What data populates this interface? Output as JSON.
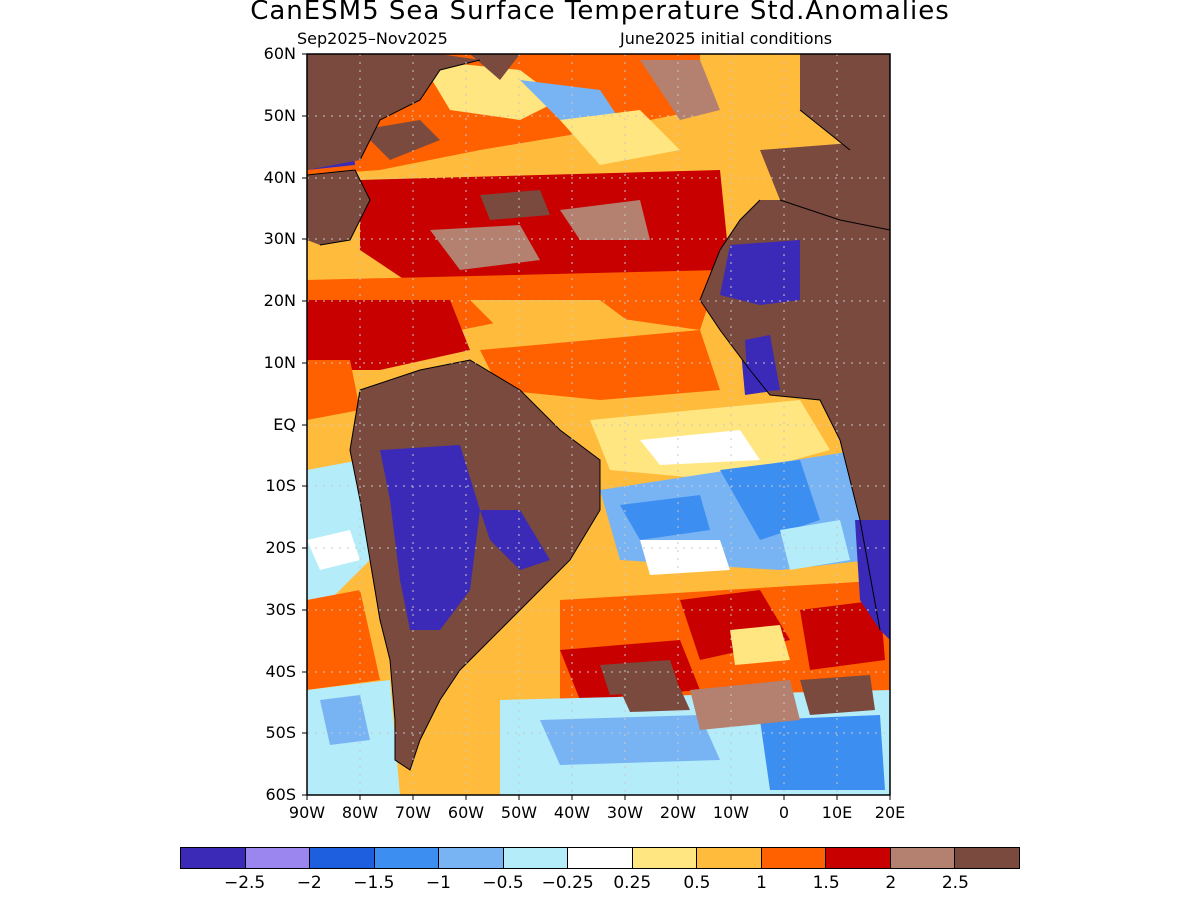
{
  "title": "CanESM5 Sea Surface Temperature Std.Anomalies",
  "period": "Sep2025–Nov2025",
  "init_conditions": "June2025 initial conditions",
  "lat_labels": [
    "60N",
    "50N",
    "40N",
    "30N",
    "20N",
    "10N",
    "EQ",
    "10S",
    "20S",
    "30S",
    "40S",
    "50S",
    "60S"
  ],
  "lon_labels": [
    "90W",
    "80W",
    "70W",
    "60W",
    "50W",
    "40W",
    "30W",
    "20W",
    "10W",
    "0",
    "10E",
    "20E"
  ],
  "legend": {
    "colors": [
      "#3b29b8",
      "#9b86f0",
      "#1e5fe0",
      "#3c8ef0",
      "#78b4f4",
      "#b4ecfa",
      "#ffffff",
      "#ffe680",
      "#ffbb3c",
      "#ff6000",
      "#c80000",
      "#b48070",
      "#7a4a3e"
    ],
    "labels": [
      "−2.5",
      "−2",
      "−1.5",
      "−1",
      "−0.5",
      "−0.25",
      "0.25",
      "0.5",
      "1",
      "1.5",
      "2",
      "2.5"
    ]
  },
  "colors": {
    "land": "#7a4a3e",
    "coast": "#000000",
    "grid": "#c8c8c8"
  }
}
